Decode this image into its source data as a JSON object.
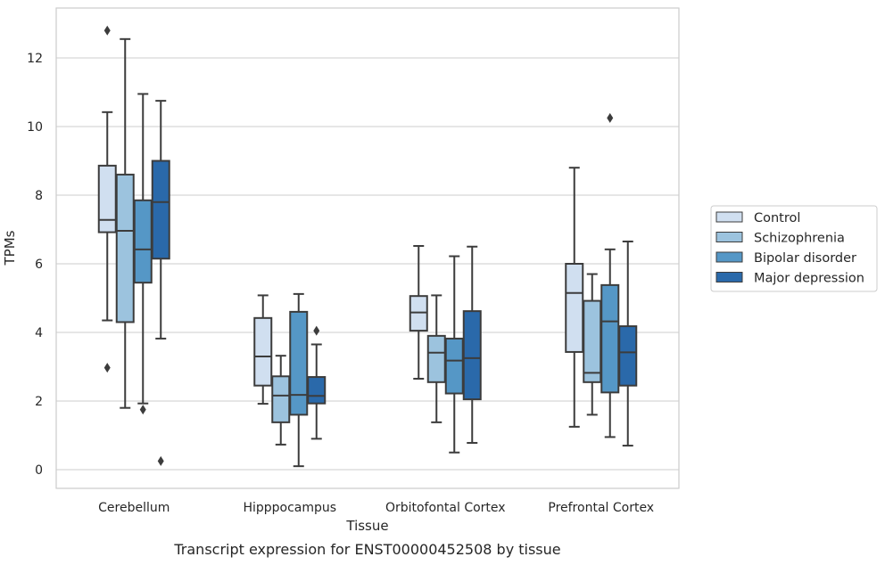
{
  "chart_data": {
    "type": "boxplot",
    "title": "",
    "caption": "Transcript expression for ENST00000452508 by tissue",
    "xlabel": "Tissue",
    "ylabel": "TPMs",
    "ylim": [
      -0.5,
      13.5
    ],
    "yticks": [
      0,
      2,
      4,
      6,
      8,
      10,
      12
    ],
    "grid": "horizontal",
    "legend_position": "right",
    "categories": [
      "Cerebellum",
      "Hipppocampus",
      "Orbitofontal Cortex",
      "Prefrontal Cortex"
    ],
    "series": [
      {
        "name": "Control",
        "color": "#d0dff0",
        "boxes": [
          {
            "whislo": 4.35,
            "q1": 6.92,
            "med": 7.28,
            "q3": 8.86,
            "whishi": 10.42,
            "fliers": [
              12.8,
              2.97
            ]
          },
          {
            "whislo": 1.92,
            "q1": 2.45,
            "med": 3.3,
            "q3": 4.42,
            "whishi": 5.08,
            "fliers": []
          },
          {
            "whislo": 2.65,
            "q1": 4.05,
            "med": 4.58,
            "q3": 5.06,
            "whishi": 6.52,
            "fliers": []
          },
          {
            "whislo": 1.25,
            "q1": 3.43,
            "med": 5.15,
            "q3": 6.0,
            "whishi": 8.8,
            "fliers": []
          }
        ]
      },
      {
        "name": "Schizophrenia",
        "color": "#9cc3de",
        "boxes": [
          {
            "whislo": 1.8,
            "q1": 4.3,
            "med": 6.96,
            "q3": 8.6,
            "whishi": 12.55,
            "fliers": []
          },
          {
            "whislo": 0.73,
            "q1": 1.38,
            "med": 2.16,
            "q3": 2.72,
            "whishi": 3.32,
            "fliers": []
          },
          {
            "whislo": 1.38,
            "q1": 2.55,
            "med": 3.41,
            "q3": 3.9,
            "whishi": 5.08,
            "fliers": []
          },
          {
            "whislo": 1.6,
            "q1": 2.55,
            "med": 2.82,
            "q3": 4.92,
            "whishi": 5.7,
            "fliers": []
          }
        ]
      },
      {
        "name": "Bipolar disorder",
        "color": "#5597c6",
        "boxes": [
          {
            "whislo": 1.93,
            "q1": 5.45,
            "med": 6.42,
            "q3": 7.85,
            "whishi": 10.95,
            "fliers": [
              1.75
            ]
          },
          {
            "whislo": 0.1,
            "q1": 1.6,
            "med": 2.18,
            "q3": 4.6,
            "whishi": 5.12,
            "fliers": []
          },
          {
            "whislo": 0.5,
            "q1": 2.22,
            "med": 3.18,
            "q3": 3.82,
            "whishi": 6.22,
            "fliers": []
          },
          {
            "whislo": 0.95,
            "q1": 2.25,
            "med": 4.32,
            "q3": 5.38,
            "whishi": 6.42,
            "fliers": [
              10.25
            ]
          }
        ]
      },
      {
        "name": "Major depression",
        "color": "#2a69aa",
        "boxes": [
          {
            "whislo": 3.82,
            "q1": 6.15,
            "med": 7.8,
            "q3": 9.0,
            "whishi": 10.75,
            "fliers": [
              0.25
            ]
          },
          {
            "whislo": 0.9,
            "q1": 1.93,
            "med": 2.15,
            "q3": 2.7,
            "whishi": 3.65,
            "fliers": [
              4.05
            ]
          },
          {
            "whislo": 0.78,
            "q1": 2.05,
            "med": 3.25,
            "q3": 4.62,
            "whishi": 6.5,
            "fliers": []
          },
          {
            "whislo": 0.7,
            "q1": 2.45,
            "med": 3.42,
            "q3": 4.18,
            "whishi": 6.65,
            "fliers": []
          }
        ]
      }
    ]
  }
}
